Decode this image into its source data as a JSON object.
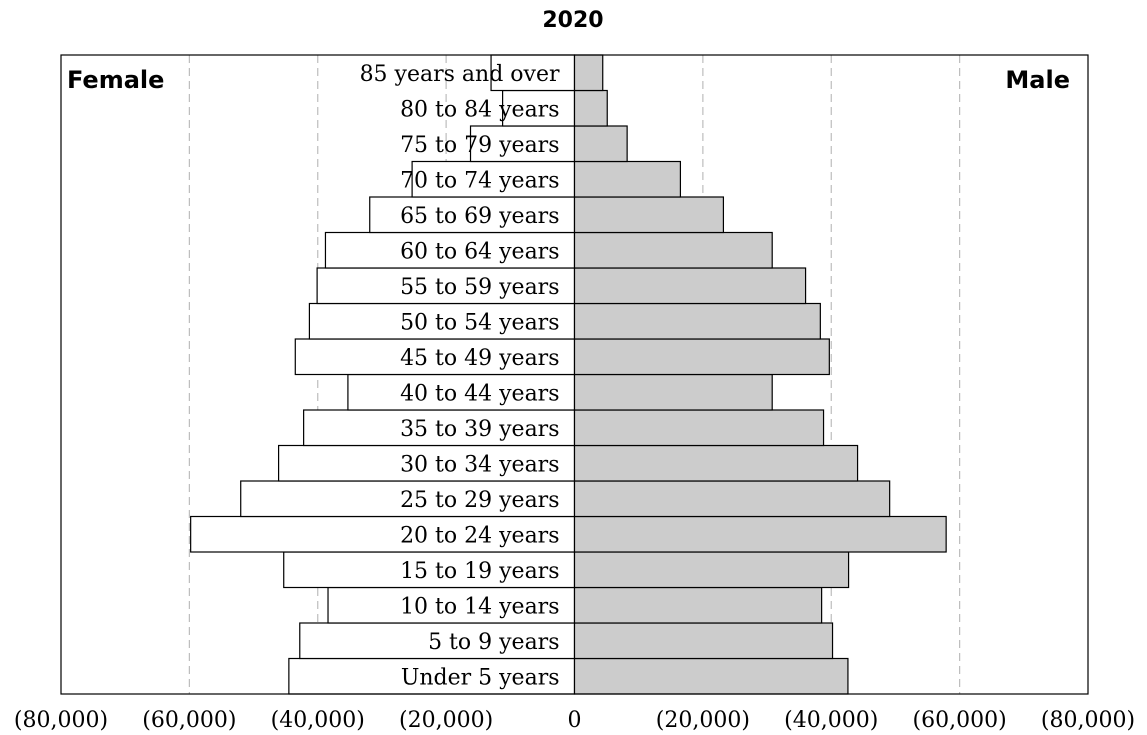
{
  "chart_data": {
    "type": "bar",
    "orientation": "horizontal",
    "title": "2020",
    "left_label": "Female",
    "right_label": "Male",
    "categories": [
      "Under 5 years",
      "5 to 9 years",
      "10 to 14 years",
      "15 to 19 years",
      "20 to 24 years",
      "25 to 29 years",
      "30 to 34 years",
      "35 to 39 years",
      "40 to 44 years",
      "45 to 49 years",
      "50 to 54 years",
      "55 to 59 years",
      "60 to 64 years",
      "65 to 69 years",
      "70 to 74 years",
      "75 to 79 years",
      "80 to 84 years",
      "85 years and over"
    ],
    "series": [
      {
        "name": "Female",
        "values": [
          44500,
          42800,
          38400,
          45300,
          59800,
          52000,
          46100,
          42200,
          35300,
          43500,
          41300,
          40100,
          38800,
          31900,
          25300,
          16200,
          11200,
          13000
        ],
        "color": "#ffffff"
      },
      {
        "name": "Male",
        "values": [
          42600,
          40200,
          38500,
          42700,
          57900,
          49100,
          44100,
          38800,
          30800,
          39700,
          38300,
          36000,
          30800,
          23200,
          16500,
          8200,
          5100,
          4400
        ],
        "color": "#cccccc"
      }
    ],
    "xlim": [
      -80000,
      80000
    ],
    "x_ticks": [
      -80000,
      -60000,
      -40000,
      -20000,
      0,
      20000,
      40000,
      60000,
      80000
    ],
    "x_tick_labels": [
      "(80,000)",
      "(60,000)",
      "(40,000)",
      "(20,000)",
      "0",
      "(20,000)",
      "(40,000)",
      "(60,000)",
      "(80,000)"
    ],
    "grid": "vertical dashed"
  }
}
